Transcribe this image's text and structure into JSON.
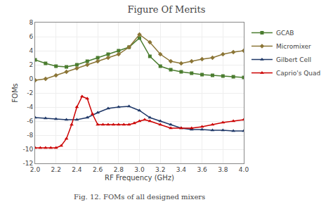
{
  "chart_data": {
    "type": "line",
    "title": "Figure Of Merits",
    "x_label": "RF Frequency (GHz)",
    "y_label": "FOMs",
    "caption": "Fig. 12. FOMs of all designed mixers",
    "xlim": [
      2.0,
      4.0
    ],
    "ylim": [
      -12,
      8
    ],
    "xticks": [
      {
        "value": 2.0,
        "label": "2.0"
      },
      2.2,
      2.4,
      2.6,
      2.8,
      {
        "value": 3.0,
        "label": "3.0"
      },
      3.2,
      3.4,
      3.6,
      3.8,
      {
        "value": 4.0,
        "label": "4.0"
      }
    ],
    "yticks": [
      -12,
      -10,
      -8,
      -6,
      -4,
      -2,
      0,
      2,
      4,
      6,
      8
    ],
    "grid": true,
    "legend": "right",
    "series": [
      {
        "name": "GCAB",
        "color": "#4a7c2f",
        "marker": "square",
        "x": [
          2.0,
          2.1,
          2.2,
          2.3,
          2.4,
          2.5,
          2.6,
          2.7,
          2.8,
          2.9,
          3.0,
          3.1,
          3.2,
          3.3,
          3.4,
          3.5,
          3.6,
          3.7,
          3.8,
          3.9,
          4.0
        ],
        "values": [
          2.7,
          2.2,
          1.8,
          1.7,
          2.0,
          2.5,
          3.0,
          3.5,
          4.0,
          4.5,
          5.8,
          3.2,
          1.8,
          1.3,
          1.0,
          0.8,
          0.6,
          0.5,
          0.4,
          0.3,
          0.2
        ]
      },
      {
        "name": "Micromixer",
        "color": "#8b7536",
        "marker": "diamond",
        "x": [
          2.0,
          2.1,
          2.2,
          2.3,
          2.4,
          2.5,
          2.6,
          2.7,
          2.8,
          2.9,
          3.0,
          3.1,
          3.2,
          3.3,
          3.4,
          3.5,
          3.6,
          3.7,
          3.8,
          3.9,
          4.0
        ],
        "values": [
          -0.2,
          0.0,
          0.5,
          1.0,
          1.5,
          2.0,
          2.5,
          3.0,
          3.5,
          4.5,
          6.3,
          5.2,
          3.5,
          2.5,
          2.2,
          2.5,
          2.8,
          3.0,
          3.5,
          3.8,
          4.0
        ]
      },
      {
        "name": "Gilbert Cell",
        "color": "#1f3868",
        "marker": "triangle-up",
        "x": [
          2.0,
          2.1,
          2.2,
          2.3,
          2.4,
          2.5,
          2.6,
          2.7,
          2.8,
          2.9,
          3.0,
          3.1,
          3.2,
          3.3,
          3.4,
          3.5,
          3.6,
          3.7,
          3.8,
          3.9,
          4.0
        ],
        "values": [
          -5.5,
          -5.6,
          -5.7,
          -5.8,
          -5.8,
          -5.5,
          -4.8,
          -4.2,
          -4.0,
          -3.9,
          -4.5,
          -5.5,
          -6.0,
          -6.5,
          -7.0,
          -7.2,
          -7.2,
          -7.3,
          -7.3,
          -7.4,
          -7.4
        ]
      },
      {
        "name": "Caprio's Quad",
        "color": "#cc0000",
        "marker": "triangle-up",
        "x": [
          2.0,
          2.05,
          2.1,
          2.15,
          2.2,
          2.25,
          2.3,
          2.35,
          2.4,
          2.45,
          2.5,
          2.55,
          2.6,
          2.65,
          2.7,
          2.75,
          2.8,
          2.85,
          2.9,
          2.95,
          3.0,
          3.05,
          3.1,
          3.2,
          3.3,
          3.4,
          3.5,
          3.6,
          3.7,
          3.8,
          3.9,
          4.0
        ],
        "values": [
          -9.8,
          -9.8,
          -9.8,
          -9.8,
          -9.8,
          -9.5,
          -8.5,
          -6.5,
          -4.0,
          -2.5,
          -2.8,
          -5.0,
          -6.5,
          -6.5,
          -6.5,
          -6.5,
          -6.5,
          -6.5,
          -6.5,
          -6.3,
          -6.0,
          -5.8,
          -6.0,
          -6.5,
          -7.0,
          -7.0,
          -7.0,
          -6.8,
          -6.5,
          -6.2,
          -6.0,
          -5.8
        ]
      }
    ]
  }
}
